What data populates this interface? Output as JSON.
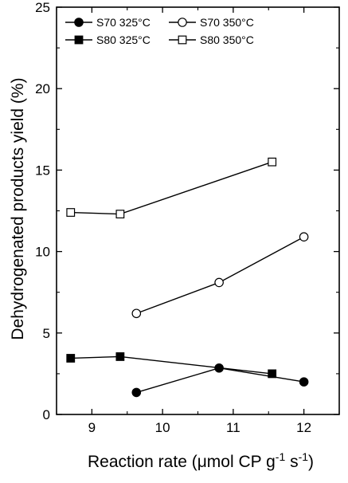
{
  "chart_data": {
    "type": "line",
    "xlabel": "Reaction rate (μmol CP g",
    "xlabel_sup1": "-1",
    "xlabel_mid": " s",
    "xlabel_sup2": "-1",
    "xlabel_end": ")",
    "ylabel": "Dehydrogenated products yield (%)",
    "xlim": [
      8.5,
      12.5
    ],
    "ylim": [
      0,
      25
    ],
    "xticks": [
      9,
      10,
      11,
      12
    ],
    "yticks": [
      0,
      5,
      10,
      15,
      20,
      25
    ],
    "legend_position": "top-left",
    "series": [
      {
        "name": "S70 325°C",
        "marker": "circle",
        "filled": true,
        "x": [
          9.63,
          10.8,
          12.0
        ],
        "y": [
          1.35,
          2.85,
          2.0
        ]
      },
      {
        "name": "S70 350°C",
        "marker": "circle",
        "filled": false,
        "x": [
          9.63,
          10.8,
          12.0
        ],
        "y": [
          6.2,
          8.1,
          10.9
        ]
      },
      {
        "name": "S80 325°C",
        "marker": "square",
        "filled": true,
        "x": [
          8.7,
          9.4,
          11.55
        ],
        "y": [
          3.45,
          3.55,
          2.5
        ]
      },
      {
        "name": "S80 350°C",
        "marker": "square",
        "filled": false,
        "x": [
          8.7,
          9.4,
          11.55
        ],
        "y": [
          12.4,
          12.3,
          15.5
        ]
      }
    ]
  }
}
